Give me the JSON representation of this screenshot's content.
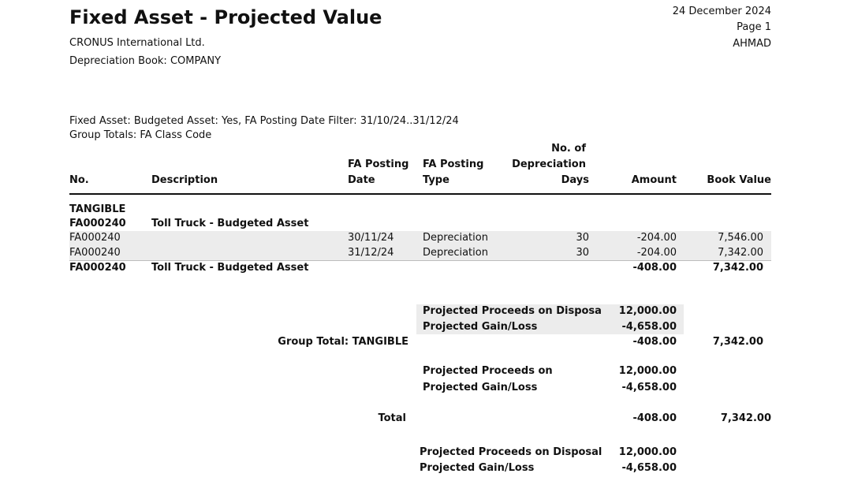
{
  "report": {
    "title": "Fixed Asset - Projected Value",
    "company": "CRONUS International Ltd.",
    "depreciation_book": "Depreciation Book: COMPANY",
    "date": "24 December 2024",
    "page": "Page 1",
    "user": "AHMAD",
    "filter": "Fixed Asset: Budgeted Asset: Yes, FA Posting Date Filter: 31/10/24..31/12/24",
    "group_totals": "Group Totals: FA Class Code"
  },
  "columns": {
    "no": "No.",
    "description": "Description",
    "posting_date_1": "FA Posting",
    "posting_date_2": "Date",
    "posting_type_1": "FA Posting",
    "posting_type_2": "Type",
    "days_1": "No. of",
    "days_2": "Depreciation",
    "days_3": "Days",
    "amount": "Amount",
    "book_value": "Book Value"
  },
  "group": {
    "code": "TANGIBLE",
    "asset_no": "FA000240",
    "asset_desc": "Toll Truck - Budgeted Asset"
  },
  "lines": [
    {
      "no": "FA000240",
      "date": "30/11/24",
      "type": "Depreciation",
      "days": "30",
      "amount": "-204.00",
      "book_value": "7,546.00"
    },
    {
      "no": "FA000240",
      "date": "31/12/24",
      "type": "Depreciation",
      "days": "30",
      "amount": "-204.00",
      "book_value": "7,342.00"
    }
  ],
  "asset_total": {
    "no": "FA000240",
    "desc": "Toll Truck - Budgeted Asset",
    "amount": "-408.00",
    "book_value": "7,342.00"
  },
  "asset_projection": {
    "proceeds_label": "Projected Proceeds on Disposa",
    "proceeds": "12,000.00",
    "gain_label": "Projected Gain/Loss",
    "gain": "-4,658.00"
  },
  "group_total": {
    "label": "Group Total: TANGIBLE",
    "amount": "-408.00",
    "book_value": "7,342.00",
    "proceeds_label": "Projected Proceeds on",
    "proceeds": "12,000.00",
    "gain_label": "Projected Gain/Loss",
    "gain": "-4,658.00"
  },
  "grand_total": {
    "label": "Total",
    "amount": "-408.00",
    "book_value": "7,342.00",
    "proceeds_label": "Projected Proceeds on Disposal",
    "proceeds": "12,000.00",
    "gain_label": "Projected Gain/Loss",
    "gain": "-4,658.00"
  }
}
